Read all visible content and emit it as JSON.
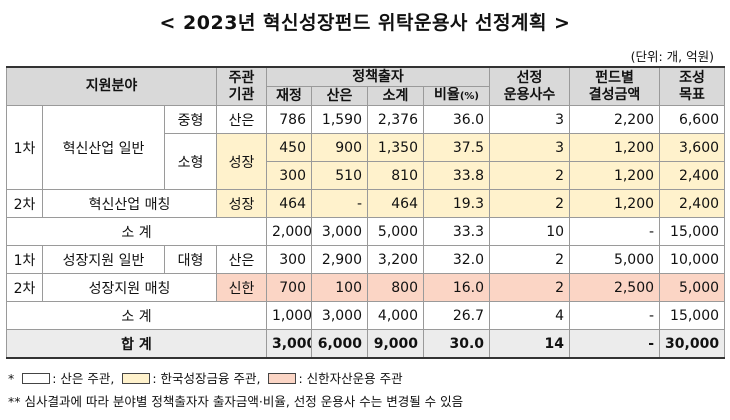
{
  "title": "< 2023년 혁신성장펀드 위탁운용사 선정계획 >",
  "unit": "(단위: 개, 억원)",
  "header": {
    "field": "지원분야",
    "agency_l1": "주관",
    "agency_l2": "기관",
    "policy": "정책출자",
    "finance": "재정",
    "kdb": "산은",
    "subtotal": "소계",
    "ratio": "비율",
    "ratio_unit": "(%)",
    "selected_l1": "선정",
    "selected_l2": "운용사수",
    "fund_l1": "펀드별",
    "fund_l2": "결성금액",
    "target_l1": "조성",
    "target_l2": "목표"
  },
  "rows": {
    "r1": {
      "round": "1차",
      "name": "혁신산업 일반",
      "size": "중형",
      "agency": "산은",
      "finance": "786",
      "kdb": "1,590",
      "subtotal": "2,376",
      "ratio": "36.0",
      "count": "3",
      "fund": "2,200",
      "target": "6,600"
    },
    "r2": {
      "size": "소형",
      "agency": "성장",
      "finance": "450",
      "kdb": "900",
      "subtotal": "1,350",
      "ratio": "37.5",
      "count": "3",
      "fund": "1,200",
      "target": "3,600"
    },
    "r3": {
      "finance": "300",
      "kdb": "510",
      "subtotal": "810",
      "ratio": "33.8",
      "count": "2",
      "fund": "1,200",
      "target": "2,400"
    },
    "r4": {
      "round": "2차",
      "name": "혁신산업 매칭",
      "agency": "성장",
      "finance": "464",
      "kdb": "-",
      "subtotal": "464",
      "ratio": "19.3",
      "count": "2",
      "fund": "1,200",
      "target": "2,400"
    },
    "s1": {
      "label": "소 계",
      "finance": "2,000",
      "kdb": "3,000",
      "subtotal": "5,000",
      "ratio": "33.3",
      "count": "10",
      "fund": "-",
      "target": "15,000"
    },
    "r5": {
      "round": "1차",
      "name": "성장지원 일반",
      "size": "대형",
      "agency": "산은",
      "finance": "300",
      "kdb": "2,900",
      "subtotal": "3,200",
      "ratio": "32.0",
      "count": "2",
      "fund": "5,000",
      "target": "10,000"
    },
    "r6": {
      "round": "2차",
      "name": "성장지원 매칭",
      "agency": "신한",
      "finance": "700",
      "kdb": "100",
      "subtotal": "800",
      "ratio": "16.0",
      "count": "2",
      "fund": "2,500",
      "target": "5,000"
    },
    "s2": {
      "label": "소 계",
      "finance": "1,000",
      "kdb": "3,000",
      "subtotal": "4,000",
      "ratio": "26.7",
      "count": "4",
      "fund": "-",
      "target": "15,000"
    },
    "total": {
      "label": "합 계",
      "finance": "3,000",
      "kdb": "6,000",
      "subtotal": "9,000",
      "ratio": "30.0",
      "count": "14",
      "fund": "-",
      "target": "30,000"
    }
  },
  "notes": {
    "star1": "*",
    "legend1": ": 산은 주관,",
    "legend2": ": 한국성장금융 주관,",
    "legend3": ": 신한자산운용 주관",
    "note2": "** 심사결과에 따라 분야별 정책출자자 출자금액·비율, 선정 운용사 수는 변경될 수 있음"
  },
  "colors": {
    "header": "#d9d9d9",
    "yellow": "#fff2cc",
    "pink": "#fbd5c5",
    "total": "#ececec"
  }
}
